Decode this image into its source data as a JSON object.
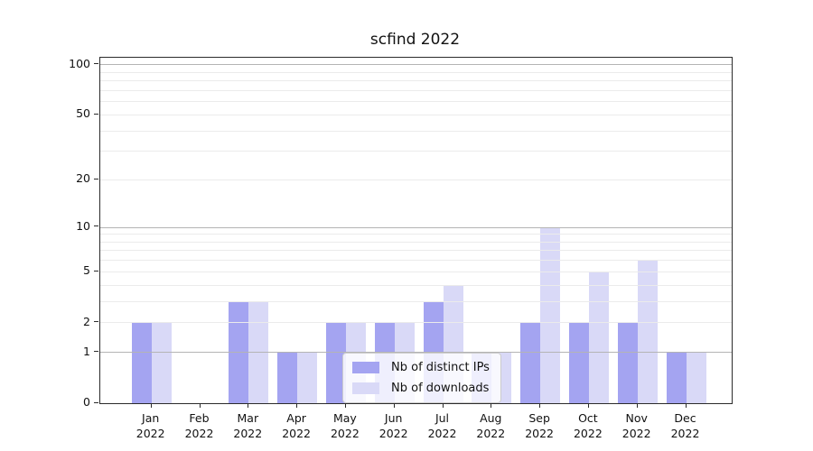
{
  "title": "scfind 2022",
  "chart_data": {
    "type": "bar",
    "title": "scfind 2022",
    "categories": [
      "Jan 2022",
      "Feb 2022",
      "Mar 2022",
      "Apr 2022",
      "May 2022",
      "Jun 2022",
      "Jul 2022",
      "Aug 2022",
      "Sep 2022",
      "Oct 2022",
      "Nov 2022",
      "Dec 2022"
    ],
    "series": [
      {
        "name": "Nb of distinct IPs",
        "color": "#a4a4f1",
        "values": [
          2,
          0,
          3,
          1,
          2,
          2,
          3,
          1,
          2,
          2,
          2,
          1
        ]
      },
      {
        "name": "Nb of downloads",
        "color": "#d9d9f7",
        "values": [
          2,
          0,
          3,
          1,
          2,
          2,
          4,
          1,
          10,
          5,
          6,
          1
        ]
      }
    ],
    "xlabel": "",
    "ylabel": "",
    "yscale": "log1p",
    "ylim": [
      0,
      110
    ],
    "y_tick_values": [
      0,
      1,
      2,
      5,
      10,
      20,
      50,
      100
    ],
    "y_major_gridlines": [
      1,
      10,
      100
    ],
    "y_minor_gridlines": [
      2,
      3,
      4,
      5,
      6,
      7,
      8,
      9,
      20,
      30,
      40,
      50,
      60,
      70,
      80,
      90
    ],
    "grid": true,
    "legend_position": "lower center",
    "colors": {
      "major_grid": "#b4b4b4",
      "minor_grid": "#ebebeb",
      "axis": "#2b2b2b",
      "text": "#111111"
    }
  }
}
